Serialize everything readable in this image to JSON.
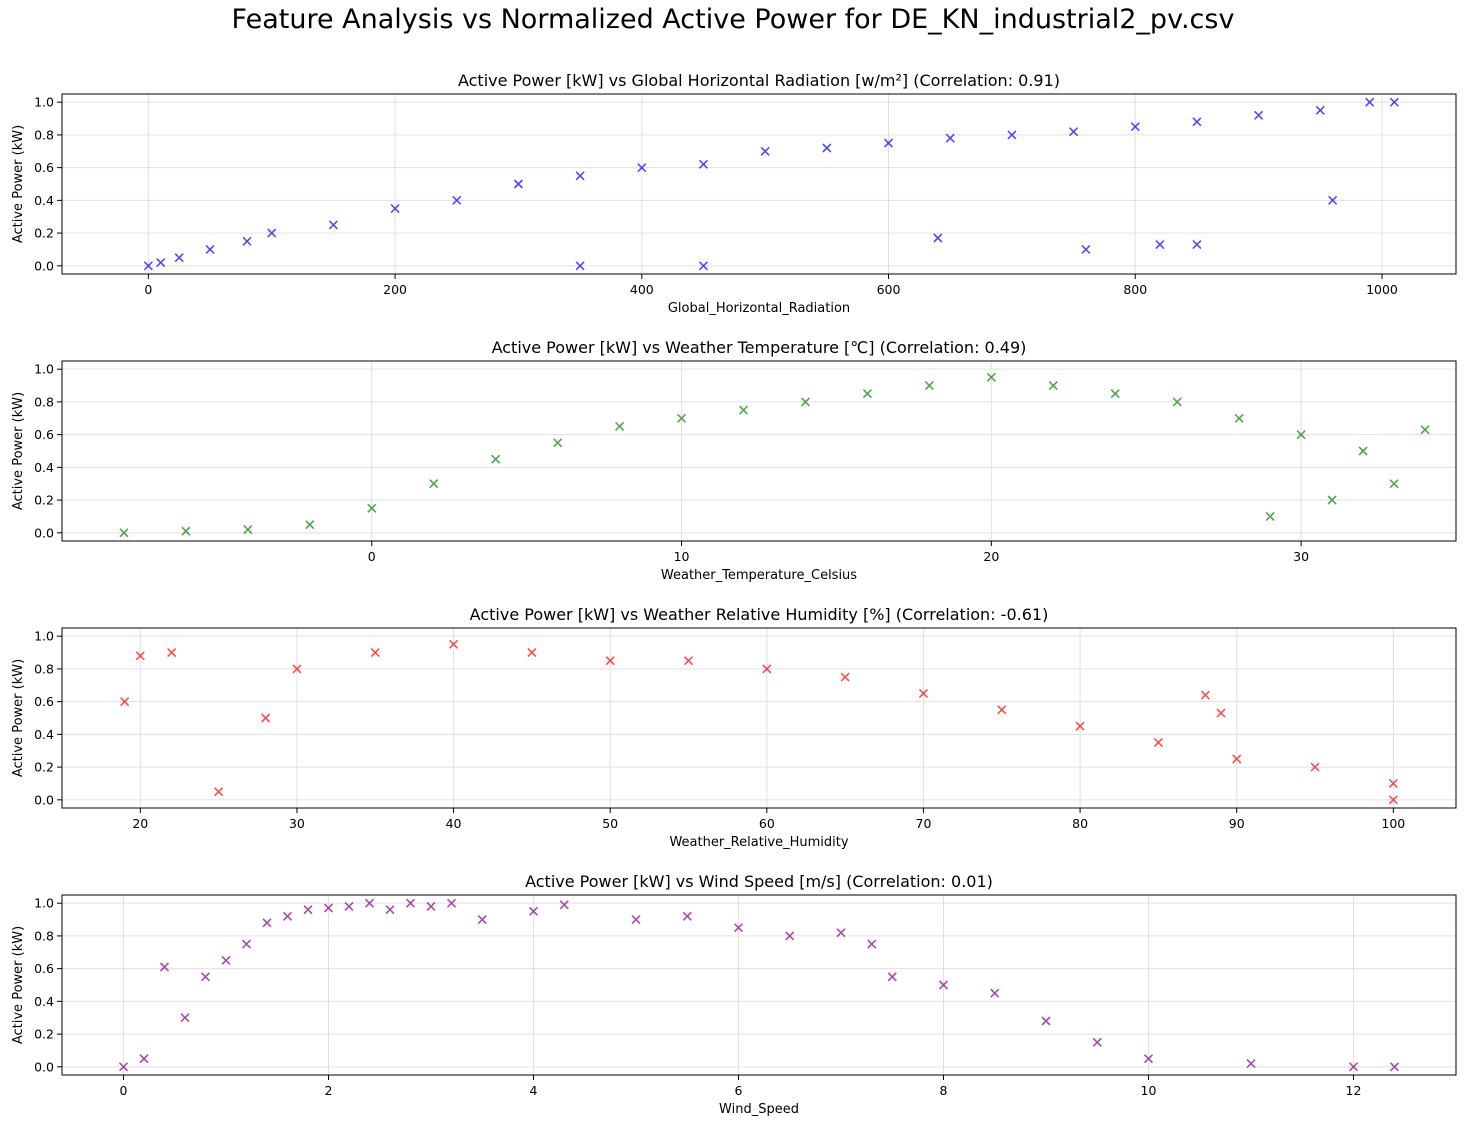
{
  "figure": {
    "title": "Feature Analysis vs Normalized Active Power for DE_KN_industrial2_pv.csv"
  },
  "chart_data": [
    {
      "type": "scatter",
      "title": "Active Power [kW] vs Global Horizontal Radiation [w/m²] (Correlation: 0.91)",
      "xlabel": "Global_Horizontal_Radiation",
      "ylabel": "Active Power (kW)",
      "xlim": [
        -70,
        1060
      ],
      "ylim": [
        -0.05,
        1.05
      ],
      "xticks": [
        0,
        200,
        400,
        600,
        800,
        1000
      ],
      "yticks": [
        0.0,
        0.2,
        0.4,
        0.6,
        0.8,
        1.0
      ],
      "grid": true,
      "marker": "x",
      "color": "#0000ff",
      "series": [
        {
          "name": "",
          "points": [
            [
              0,
              0
            ],
            [
              10,
              0.02
            ],
            [
              25,
              0.05
            ],
            [
              50,
              0.1
            ],
            [
              80,
              0.15
            ],
            [
              100,
              0.2
            ],
            [
              150,
              0.25
            ],
            [
              200,
              0.35
            ],
            [
              250,
              0.4
            ],
            [
              300,
              0.5
            ],
            [
              350,
              0.55
            ],
            [
              400,
              0.6
            ],
            [
              450,
              0.62
            ],
            [
              500,
              0.7
            ],
            [
              550,
              0.72
            ],
            [
              600,
              0.75
            ],
            [
              650,
              0.78
            ],
            [
              700,
              0.8
            ],
            [
              750,
              0.82
            ],
            [
              800,
              0.85
            ],
            [
              850,
              0.88
            ],
            [
              900,
              0.92
            ],
            [
              950,
              0.95
            ],
            [
              990,
              1.0
            ],
            [
              1010,
              1.0
            ],
            [
              760,
              0.1
            ],
            [
              850,
              0.13
            ],
            [
              820,
              0.13
            ],
            [
              640,
              0.17
            ],
            [
              450,
              0.0
            ],
            [
              350,
              0.0
            ],
            [
              960,
              0.4
            ]
          ]
        }
      ]
    },
    {
      "type": "scatter",
      "title": "Active Power [kW] vs Weather Temperature [℃] (Correlation: 0.49)",
      "xlabel": "Weather_Temperature_Celsius",
      "ylabel": "Active Power (kW)",
      "xlim": [
        -10,
        35
      ],
      "ylim": [
        -0.05,
        1.05
      ],
      "xticks": [
        0,
        10,
        20,
        30
      ],
      "yticks": [
        0.0,
        0.2,
        0.4,
        0.6,
        0.8,
        1.0
      ],
      "grid": true,
      "marker": "x",
      "color": "#008000",
      "series": [
        {
          "name": "",
          "points": [
            [
              -8,
              0
            ],
            [
              -6,
              0.01
            ],
            [
              -4,
              0.02
            ],
            [
              -2,
              0.05
            ],
            [
              0,
              0.15
            ],
            [
              2,
              0.3
            ],
            [
              4,
              0.45
            ],
            [
              6,
              0.55
            ],
            [
              8,
              0.65
            ],
            [
              10,
              0.7
            ],
            [
              12,
              0.75
            ],
            [
              14,
              0.8
            ],
            [
              16,
              0.85
            ],
            [
              18,
              0.9
            ],
            [
              20,
              0.95
            ],
            [
              22,
              0.9
            ],
            [
              24,
              0.85
            ],
            [
              26,
              0.8
            ],
            [
              28,
              0.7
            ],
            [
              30,
              0.6
            ],
            [
              32,
              0.5
            ],
            [
              33,
              0.3
            ],
            [
              34,
              0.63
            ],
            [
              31,
              0.2
            ],
            [
              29,
              0.1
            ]
          ]
        }
      ]
    },
    {
      "type": "scatter",
      "title": "Active Power [kW] vs Weather Relative Humidity [%] (Correlation: -0.61)",
      "xlabel": "Weather_Relative_Humidity",
      "ylabel": "Active Power (kW)",
      "xlim": [
        15,
        104
      ],
      "ylim": [
        -0.05,
        1.05
      ],
      "xticks": [
        20,
        30,
        40,
        50,
        60,
        70,
        80,
        90,
        100
      ],
      "yticks": [
        0.0,
        0.2,
        0.4,
        0.6,
        0.8,
        1.0
      ],
      "grid": true,
      "marker": "x",
      "color": "#ff0000",
      "series": [
        {
          "name": "",
          "points": [
            [
              19,
              0.6
            ],
            [
              20,
              0.88
            ],
            [
              22,
              0.9
            ],
            [
              25,
              0.05
            ],
            [
              28,
              0.5
            ],
            [
              30,
              0.8
            ],
            [
              35,
              0.9
            ],
            [
              40,
              0.95
            ],
            [
              45,
              0.9
            ],
            [
              50,
              0.85
            ],
            [
              55,
              0.85
            ],
            [
              60,
              0.8
            ],
            [
              65,
              0.75
            ],
            [
              70,
              0.65
            ],
            [
              75,
              0.55
            ],
            [
              80,
              0.45
            ],
            [
              85,
              0.35
            ],
            [
              90,
              0.25
            ],
            [
              95,
              0.2
            ],
            [
              100,
              0.1
            ],
            [
              100,
              0.0
            ],
            [
              88,
              0.64
            ],
            [
              89,
              0.53
            ]
          ]
        }
      ]
    },
    {
      "type": "scatter",
      "title": "Active Power [kW] vs Wind Speed [m/s] (Correlation: 0.01)",
      "xlabel": "Wind_Speed",
      "ylabel": "Active Power (kW)",
      "xlim": [
        -0.6,
        13.0
      ],
      "ylim": [
        -0.05,
        1.05
      ],
      "xticks": [
        0,
        2,
        4,
        6,
        8,
        10,
        12
      ],
      "yticks": [
        0.0,
        0.2,
        0.4,
        0.6,
        0.8,
        1.0
      ],
      "grid": true,
      "marker": "x",
      "color": "#800080",
      "series": [
        {
          "name": "",
          "points": [
            [
              0,
              0
            ],
            [
              0.2,
              0.05
            ],
            [
              0.4,
              0.61
            ],
            [
              0.6,
              0.3
            ],
            [
              0.8,
              0.55
            ],
            [
              1.0,
              0.65
            ],
            [
              1.2,
              0.75
            ],
            [
              1.4,
              0.88
            ],
            [
              1.6,
              0.92
            ],
            [
              1.8,
              0.96
            ],
            [
              2.0,
              0.97
            ],
            [
              2.2,
              0.98
            ],
            [
              2.4,
              1.0
            ],
            [
              2.6,
              0.96
            ],
            [
              2.8,
              1.0
            ],
            [
              3.0,
              0.98
            ],
            [
              3.2,
              1.0
            ],
            [
              3.5,
              0.9
            ],
            [
              4.0,
              0.95
            ],
            [
              4.3,
              0.99
            ],
            [
              5.0,
              0.9
            ],
            [
              5.5,
              0.92
            ],
            [
              6.0,
              0.85
            ],
            [
              6.5,
              0.8
            ],
            [
              7.0,
              0.82
            ],
            [
              7.3,
              0.75
            ],
            [
              7.5,
              0.55
            ],
            [
              8.0,
              0.5
            ],
            [
              8.5,
              0.45
            ],
            [
              9.0,
              0.28
            ],
            [
              9.5,
              0.15
            ],
            [
              10,
              0.05
            ],
            [
              11,
              0.02
            ],
            [
              12,
              0.0
            ],
            [
              12.4,
              0.0
            ]
          ]
        }
      ]
    }
  ]
}
